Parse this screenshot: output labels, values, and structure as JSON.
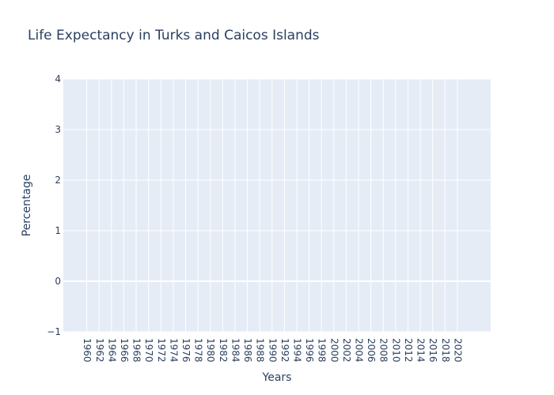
{
  "chart_data": {
    "type": "line",
    "title": "Life Expectancy in Turks and Caicos Islands",
    "xlabel": "Years",
    "ylabel": "Percentage",
    "xlim": [
      1956.2,
      2025.4
    ],
    "xticks": [
      1960,
      1962,
      1964,
      1966,
      1968,
      1970,
      1972,
      1974,
      1976,
      1978,
      1980,
      1982,
      1984,
      1986,
      1988,
      1990,
      1992,
      1994,
      1996,
      1998,
      2000,
      2002,
      2004,
      2006,
      2008,
      2010,
      2012,
      2014,
      2016,
      2018,
      2020
    ],
    "ylim": [
      -1,
      4
    ],
    "yticks": [
      {
        "value": -1,
        "label": "−1"
      },
      0,
      1,
      2,
      3,
      4
    ],
    "grid": true,
    "series": []
  }
}
